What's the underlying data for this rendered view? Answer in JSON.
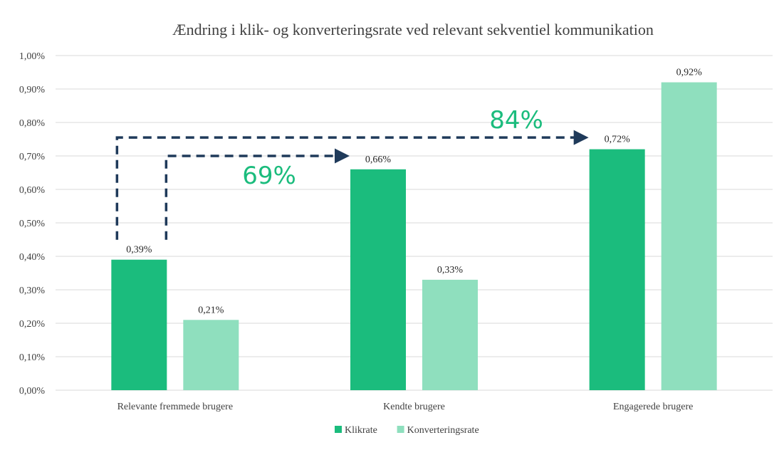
{
  "chart_data": {
    "type": "bar",
    "title": "Ændring i klik- og konverteringsrate ved relevant sekventiel kommunikation",
    "xlabel": "",
    "ylabel": "",
    "categories": [
      "Relevante fremmede brugere",
      "Kendte brugere",
      "Engagerede brugere"
    ],
    "series": [
      {
        "name": "Klikrate",
        "values": [
          0.39,
          0.66,
          0.72
        ],
        "labels": [
          "0,39%",
          "0,66%",
          "0,72%"
        ],
        "color": "#1bbc7d"
      },
      {
        "name": "Konverteringsrate",
        "values": [
          0.21,
          0.33,
          0.92
        ],
        "labels": [
          "0,21%",
          "0,33%",
          "0,92%"
        ],
        "color": "#8fdfbe"
      }
    ],
    "ylim": [
      0,
      1
    ],
    "yticks": [
      0,
      0.1,
      0.2,
      0.3,
      0.4,
      0.5,
      0.6,
      0.7,
      0.8,
      0.9,
      1.0
    ],
    "ytick_labels": [
      "0,00%",
      "0,10%",
      "0,20%",
      "0,30%",
      "0,40%",
      "0,50%",
      "0,60%",
      "0,70%",
      "0,80%",
      "0,90%",
      "1,00%"
    ],
    "grid": true,
    "legend_position": "bottom",
    "annotations": [
      {
        "text": "69%",
        "from_category": 0,
        "to_category": 1,
        "series": "Klikrate",
        "color": "#1bbc7d"
      },
      {
        "text": "84%",
        "from_category": 0,
        "to_category": 2,
        "series": "Klikrate",
        "color": "#1bbc7d"
      }
    ],
    "arrow_color": "#1f3a5a"
  }
}
